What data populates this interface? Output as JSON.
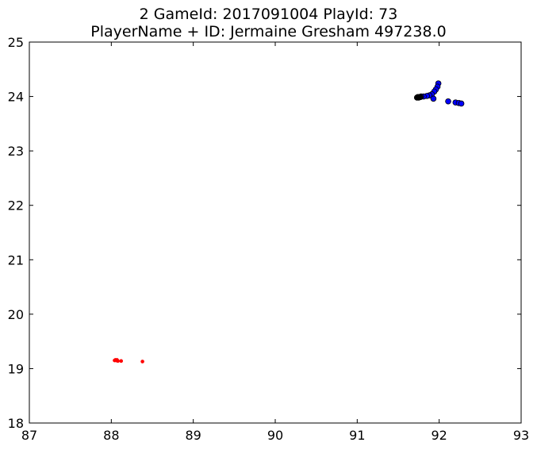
{
  "chart_data": {
    "type": "scatter",
    "title": "2 GameId: 2017091004 PlayId: 73",
    "subtitle": "PlayerName + ID: Jermaine Gresham 497238.0",
    "xlabel": "",
    "ylabel": "",
    "xlim": [
      87,
      93
    ],
    "ylim": [
      18,
      25
    ],
    "xticks": [
      "87",
      "88",
      "89",
      "90",
      "91",
      "92",
      "93"
    ],
    "yticks": [
      "18",
      "19",
      "20",
      "21",
      "22",
      "23",
      "24",
      "25"
    ],
    "grid": false,
    "series": [
      {
        "color": "#ff0000",
        "marker": "small-dot",
        "x": [
          88.04,
          88.05,
          88.06,
          88.07,
          88.08,
          88.12,
          88.38
        ],
        "y": [
          19.15,
          19.16,
          19.15,
          19.16,
          19.14,
          19.14,
          19.13
        ]
      },
      {
        "color": "#0000ff",
        "marker": "circle-black-edge",
        "x": [
          91.99,
          91.98,
          91.96,
          91.94,
          91.91,
          91.88,
          91.85,
          91.81,
          91.78,
          91.76,
          91.93,
          92.11,
          92.2,
          92.24,
          92.27
        ],
        "y": [
          24.24,
          24.18,
          24.13,
          24.09,
          24.04,
          24.02,
          24.01,
          24.0,
          24.0,
          23.99,
          23.96,
          23.91,
          23.89,
          23.88,
          23.87
        ]
      },
      {
        "color": "#000000",
        "marker": "circle",
        "x": [
          91.73,
          91.74,
          91.75,
          91.76,
          91.77
        ],
        "y": [
          23.98,
          23.99,
          23.98,
          23.99,
          23.99
        ]
      }
    ]
  }
}
